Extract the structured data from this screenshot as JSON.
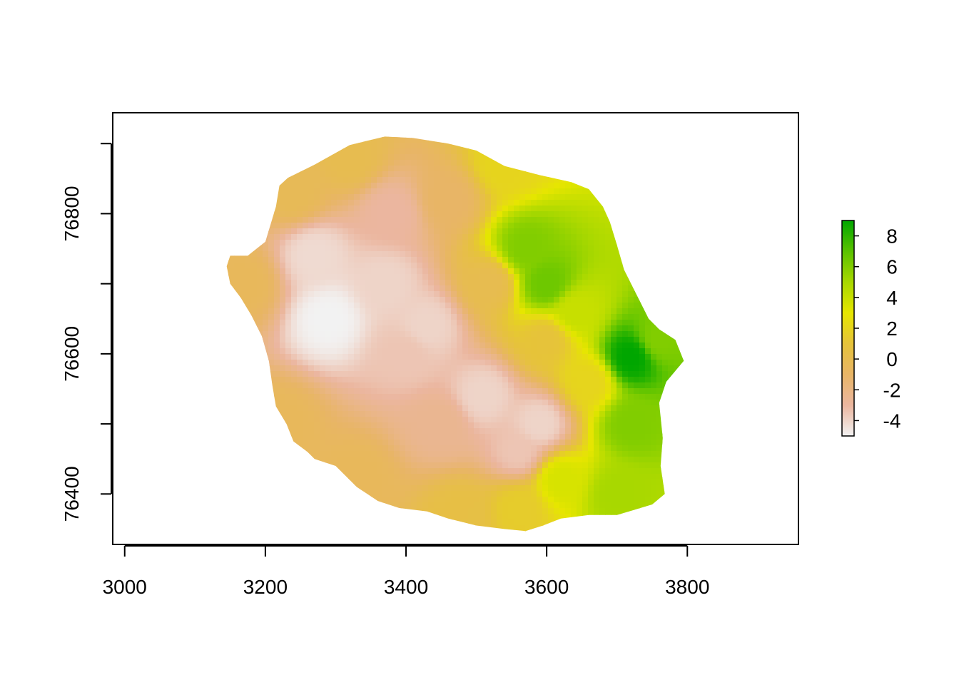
{
  "map": {
    "type": "raster",
    "title": "",
    "xlabel": "",
    "ylabel": "",
    "x_ticks": [
      "3000",
      "3200",
      "3400",
      "3600",
      "3800"
    ],
    "y_ticks": [
      "76400",
      "76600",
      "76800"
    ],
    "xlim": [
      2983,
      3958
    ],
    "ylim": [
      76328,
      76944
    ],
    "legend": {
      "type": "colorbar",
      "placement": "right",
      "range": [
        -5,
        9
      ],
      "ticks": [
        "8",
        "6",
        "4",
        "2",
        "0",
        "-2",
        "-4"
      ],
      "tick_values": [
        8,
        6,
        4,
        2,
        0,
        -2,
        -4
      ],
      "palette": [
        "#f2f2f2",
        "#ebb69f",
        "#e8b566",
        "#e6c33a",
        "#e6e600",
        "#a8d800",
        "#5ac200",
        "#00a600"
      ]
    },
    "island_outline_units": [
      [
        3232,
        76851
      ],
      [
        3270,
        76870
      ],
      [
        3320,
        76898
      ],
      [
        3370,
        76910
      ],
      [
        3410,
        76908
      ],
      [
        3460,
        76900
      ],
      [
        3500,
        76890
      ],
      [
        3540,
        76868
      ],
      [
        3590,
        76855
      ],
      [
        3635,
        76845
      ],
      [
        3660,
        76835
      ],
      [
        3680,
        76810
      ],
      [
        3690,
        76788
      ],
      [
        3700,
        76755
      ],
      [
        3710,
        76720
      ],
      [
        3730,
        76680
      ],
      [
        3745,
        76650
      ],
      [
        3760,
        76635
      ],
      [
        3783,
        76620
      ],
      [
        3795,
        76590
      ],
      [
        3770,
        76560
      ],
      [
        3760,
        76530
      ],
      [
        3765,
        76480
      ],
      [
        3762,
        76440
      ],
      [
        3768,
        76400
      ],
      [
        3750,
        76385
      ],
      [
        3700,
        76370
      ],
      [
        3660,
        76370
      ],
      [
        3620,
        76365
      ],
      [
        3595,
        76355
      ],
      [
        3570,
        76347
      ],
      [
        3540,
        76350
      ],
      [
        3500,
        76355
      ],
      [
        3460,
        76365
      ],
      [
        3430,
        76375
      ],
      [
        3390,
        76380
      ],
      [
        3360,
        76390
      ],
      [
        3330,
        76410
      ],
      [
        3300,
        76440
      ],
      [
        3270,
        76450
      ],
      [
        3260,
        76460
      ],
      [
        3240,
        76475
      ],
      [
        3230,
        76500
      ],
      [
        3215,
        76525
      ],
      [
        3210,
        76555
      ],
      [
        3205,
        76590
      ],
      [
        3195,
        76625
      ],
      [
        3180,
        76655
      ],
      [
        3165,
        76680
      ],
      [
        3150,
        76700
      ],
      [
        3145,
        76725
      ],
      [
        3150,
        76740
      ],
      [
        3175,
        76740
      ],
      [
        3200,
        76760
      ],
      [
        3215,
        76810
      ],
      [
        3220,
        76840
      ]
    ],
    "field_points": [
      {
        "x": 3290,
        "y": 76650,
        "v": -5
      },
      {
        "x": 3270,
        "y": 76740,
        "v": -4.2
      },
      {
        "x": 3370,
        "y": 76700,
        "v": -4
      },
      {
        "x": 3400,
        "y": 76600,
        "v": -3.5
      },
      {
        "x": 3430,
        "y": 76640,
        "v": -4
      },
      {
        "x": 3510,
        "y": 76540,
        "v": -4
      },
      {
        "x": 3590,
        "y": 76500,
        "v": -4
      },
      {
        "x": 3560,
        "y": 76460,
        "v": -3.5
      },
      {
        "x": 3450,
        "y": 76500,
        "v": -2.5
      },
      {
        "x": 3380,
        "y": 76800,
        "v": -3
      },
      {
        "x": 3460,
        "y": 76820,
        "v": -1
      },
      {
        "x": 3540,
        "y": 76870,
        "v": 2
      },
      {
        "x": 3570,
        "y": 76750,
        "v": 6
      },
      {
        "x": 3600,
        "y": 76700,
        "v": 6.5
      },
      {
        "x": 3640,
        "y": 76660,
        "v": 4
      },
      {
        "x": 3720,
        "y": 76595,
        "v": 9
      },
      {
        "x": 3760,
        "y": 76620,
        "v": 6
      },
      {
        "x": 3720,
        "y": 76500,
        "v": 6
      },
      {
        "x": 3700,
        "y": 76400,
        "v": 5
      },
      {
        "x": 3620,
        "y": 76420,
        "v": 3.5
      },
      {
        "x": 3560,
        "y": 76380,
        "v": 1.5
      },
      {
        "x": 3480,
        "y": 76370,
        "v": 0.5
      },
      {
        "x": 3660,
        "y": 76560,
        "v": 2
      },
      {
        "x": 3600,
        "y": 76620,
        "v": 1
      },
      {
        "x": 3520,
        "y": 76700,
        "v": 0
      },
      {
        "x": 3220,
        "y": 76500,
        "v": -0.5
      },
      {
        "x": 3170,
        "y": 76700,
        "v": -0.5
      },
      {
        "x": 3240,
        "y": 76830,
        "v": -0.3
      },
      {
        "x": 3320,
        "y": 76880,
        "v": 0
      },
      {
        "x": 3330,
        "y": 76420,
        "v": -0.5
      }
    ]
  }
}
